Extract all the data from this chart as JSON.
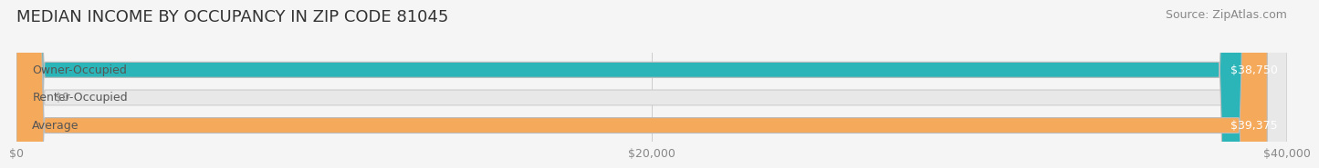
{
  "title": "MEDIAN INCOME BY OCCUPANCY IN ZIP CODE 81045",
  "source": "Source: ZipAtlas.com",
  "categories": [
    "Owner-Occupied",
    "Renter-Occupied",
    "Average"
  ],
  "values": [
    38750,
    0,
    39375
  ],
  "bar_colors": [
    "#2bb5b8",
    "#c4a8d4",
    "#f5a95a"
  ],
  "bar_labels": [
    "$38,750",
    "$0",
    "$39,375"
  ],
  "xlim": [
    0,
    40000
  ],
  "xticks": [
    0,
    20000,
    40000
  ],
  "xtick_labels": [
    "$0",
    "$20,000",
    "$40,000"
  ],
  "background_color": "#f5f5f5",
  "bar_bg_color": "#e8e8e8",
  "title_fontsize": 13,
  "source_fontsize": 9,
  "label_fontsize": 9,
  "tick_fontsize": 9,
  "bar_height": 0.55,
  "bar_label_color": "#ffffff",
  "cat_label_color": "#555555"
}
